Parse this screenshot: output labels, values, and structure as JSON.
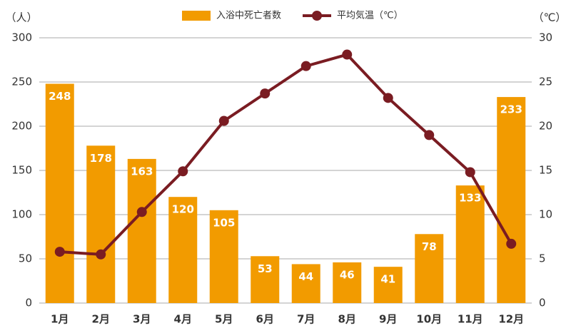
{
  "chart_data": {
    "type": "bar",
    "categories": [
      "1月",
      "2月",
      "3月",
      "4月",
      "5月",
      "6月",
      "7月",
      "8月",
      "9月",
      "10月",
      "11月",
      "12月"
    ],
    "series": [
      {
        "name": "入浴中死亡者数",
        "type": "bar",
        "color": "#f29b00",
        "values": [
          248,
          178,
          163,
          120,
          105,
          53,
          44,
          46,
          41,
          78,
          133,
          233
        ]
      },
      {
        "name": "平均気温（℃）",
        "type": "line",
        "axis": "y2",
        "color": "#7a1c22",
        "values": [
          5.8,
          5.5,
          10.3,
          14.9,
          20.6,
          23.7,
          26.8,
          28.1,
          23.2,
          19.0,
          14.8,
          6.7
        ]
      }
    ],
    "ylabel": "（人）",
    "y2label": "（℃）",
    "ylim": [
      0,
      300
    ],
    "yticks": [
      0,
      50,
      100,
      150,
      200,
      250,
      300
    ],
    "y2lim": [
      0,
      30
    ],
    "y2ticks": [
      0,
      5,
      10,
      15,
      20,
      25,
      30
    ],
    "grid": true,
    "legend": "top"
  }
}
